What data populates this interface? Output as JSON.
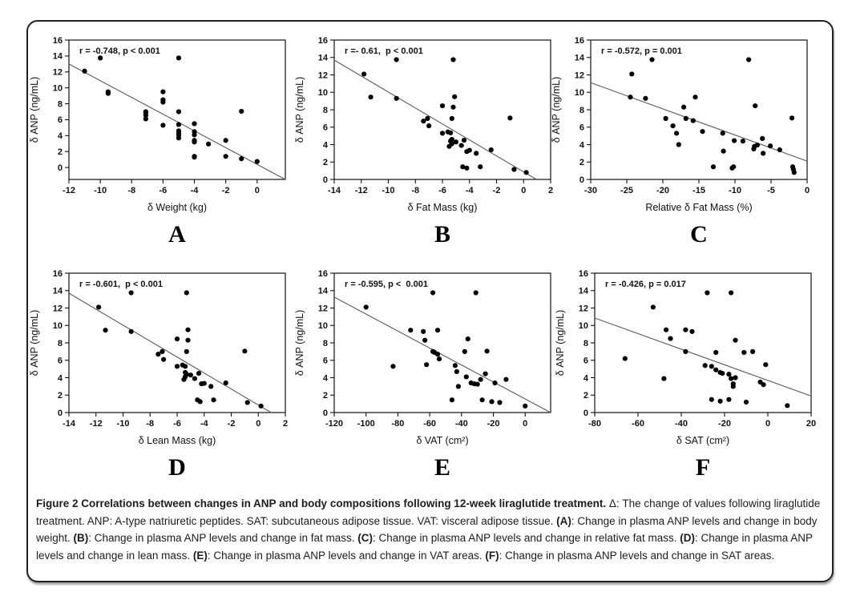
{
  "figure": {
    "caption": [
      {
        "text": "Figure 2 Correlations between changes in ANP and body compositions following 12-week liraglutide treatment.",
        "bold": true
      },
      {
        "text": " Δ: The change of values following liraglutide treatment. ANP: A-type natriuretic peptides. SAT: subcutaneous adipose tissue. VAT: visceral adipose tissue. ",
        "bold": false
      },
      {
        "text": "(A)",
        "bold": true
      },
      {
        "text": ": Change in plasma ANP levels and change in body weight. ",
        "bold": false
      },
      {
        "text": "(B)",
        "bold": true
      },
      {
        "text": ": Change in plasma ANP levels and change in fat mass. ",
        "bold": false
      },
      {
        "text": "(C)",
        "bold": true
      },
      {
        "text": ": Change in plasma ANP levels and change in relative fat mass. ",
        "bold": false
      },
      {
        "text": "(D)",
        "bold": true
      },
      {
        "text": ": Change in plasma ANP levels and change in lean mass. ",
        "bold": false
      },
      {
        "text": "(E)",
        "bold": true
      },
      {
        "text": ": Change in plasma ANP levels and change in VAT areas. ",
        "bold": false
      },
      {
        "text": "(F)",
        "bold": true
      },
      {
        "text": ": Change in plasma ANP levels and change in SAT areas.",
        "bold": false
      }
    ]
  },
  "chart_data": [
    {
      "id": "A",
      "type": "scatter",
      "annotation": "r = -0.748, p < 0.001",
      "xlabel": "δ Weight (kg)",
      "ylabel": "δ ANP (ng/mL)",
      "xlim": [
        -12,
        1.8
      ],
      "ylim": [
        -1.5,
        16
      ],
      "xticks": [
        -12,
        -10,
        -8,
        -6,
        -4,
        -2,
        0
      ],
      "yticks": [
        0,
        2,
        4,
        6,
        8,
        10,
        12,
        14,
        16
      ],
      "regression_line": [
        [
          -12,
          13.0
        ],
        [
          1.8,
          -1.5
        ]
      ],
      "points": [
        [
          -11,
          12.1
        ],
        [
          -10,
          13.75
        ],
        [
          -9.5,
          9.5
        ],
        [
          -9.5,
          9.3
        ],
        [
          -7.1,
          7.0
        ],
        [
          -7.1,
          6.85
        ],
        [
          -7.1,
          6.55
        ],
        [
          -7.1,
          6.1
        ],
        [
          -6,
          9.5
        ],
        [
          -6,
          8.5
        ],
        [
          -6,
          8.2
        ],
        [
          -6,
          5.3
        ],
        [
          -5,
          13.75
        ],
        [
          -5,
          7.0
        ],
        [
          -5,
          5.4
        ],
        [
          -5,
          4.6
        ],
        [
          -5,
          4.3
        ],
        [
          -5,
          4.1
        ],
        [
          -5,
          3.7
        ],
        [
          -4,
          5.5
        ],
        [
          -4,
          4.5
        ],
        [
          -4,
          4.1
        ],
        [
          -4,
          3.4
        ],
        [
          -4,
          3.2
        ],
        [
          -4,
          1.4
        ],
        [
          -4,
          1.3
        ],
        [
          -3.1,
          2.95
        ],
        [
          -2,
          3.4
        ],
        [
          -2,
          1.4
        ],
        [
          -1,
          7.05
        ],
        [
          -1,
          1.1
        ],
        [
          0,
          0.75
        ]
      ]
    },
    {
      "id": "B",
      "type": "scatter",
      "annotation": "r =- 0.61,  p < 0.001",
      "xlabel": "δ Fat Mass (kg)",
      "ylabel": "δ ANP (ng/mL)",
      "xlim": [
        -14,
        2
      ],
      "ylim": [
        0,
        16
      ],
      "xticks": [
        -14,
        -12,
        -10,
        -8,
        -6,
        -4,
        -2,
        0,
        2
      ],
      "yticks": [
        0,
        2,
        4,
        6,
        8,
        10,
        12,
        14,
        16
      ],
      "regression_line": [
        [
          -14,
          13.7
        ],
        [
          0.95,
          0
        ]
      ],
      "points": [
        [
          -11.8,
          12.1
        ],
        [
          -11.3,
          9.45
        ],
        [
          -9.4,
          13.75
        ],
        [
          -9.4,
          9.3
        ],
        [
          -7.4,
          6.7
        ],
        [
          -7.1,
          7.0
        ],
        [
          -7.0,
          6.15
        ],
        [
          -6.0,
          8.45
        ],
        [
          -6.0,
          5.3
        ],
        [
          -5.6,
          5.45
        ],
        [
          -5.4,
          5.35
        ],
        [
          -5.2,
          13.75
        ],
        [
          -5.1,
          9.5
        ],
        [
          -5.2,
          8.3
        ],
        [
          -5.3,
          7.0
        ],
        [
          -5.3,
          4.6
        ],
        [
          -5.4,
          4.4
        ],
        [
          -5.3,
          4.1
        ],
        [
          -5.5,
          3.8
        ],
        [
          -5.0,
          4.3
        ],
        [
          -4.6,
          3.9
        ],
        [
          -4.4,
          4.5
        ],
        [
          -4.5,
          1.45
        ],
        [
          -4.2,
          1.3
        ],
        [
          -4.2,
          3.2
        ],
        [
          -4.0,
          3.35
        ],
        [
          -3.5,
          3.0
        ],
        [
          -3.2,
          1.45
        ],
        [
          -2.4,
          3.4
        ],
        [
          -1.0,
          7.05
        ],
        [
          -0.7,
          1.15
        ],
        [
          0.2,
          0.8
        ]
      ]
    },
    {
      "id": "C",
      "type": "scatter",
      "annotation": "r = -0.572, p = 0.001",
      "xlabel": "Relative δ Fat Mass (%)",
      "ylabel": "δ ANP (ng/mL)",
      "xlim": [
        -30,
        0
      ],
      "ylim": [
        0,
        16
      ],
      "xticks": [
        -30,
        -25,
        -20,
        -15,
        -10,
        -5,
        0
      ],
      "yticks": [
        0,
        2,
        4,
        6,
        8,
        10,
        12,
        14,
        16
      ],
      "regression_line": [
        [
          -30,
          11.1
        ],
        [
          0,
          2.1
        ]
      ],
      "points": [
        [
          -24.5,
          9.45
        ],
        [
          -24.3,
          12.1
        ],
        [
          -22.4,
          9.3
        ],
        [
          -21.5,
          13.75
        ],
        [
          -19.6,
          7.0
        ],
        [
          -18.6,
          6.15
        ],
        [
          -18.1,
          5.3
        ],
        [
          -17.8,
          4.0
        ],
        [
          -17.1,
          8.3
        ],
        [
          -16.8,
          7.0
        ],
        [
          -15.8,
          6.75
        ],
        [
          -15.5,
          9.45
        ],
        [
          -14.5,
          5.5
        ],
        [
          -13.0,
          1.45
        ],
        [
          -11.7,
          5.3
        ],
        [
          -11.6,
          3.25
        ],
        [
          -10.4,
          1.3
        ],
        [
          -10.2,
          1.45
        ],
        [
          -10.1,
          4.45
        ],
        [
          -8.9,
          4.4
        ],
        [
          -8.1,
          13.75
        ],
        [
          -7.4,
          3.5
        ],
        [
          -7.3,
          3.8
        ],
        [
          -7.2,
          8.45
        ],
        [
          -6.9,
          3.95
        ],
        [
          -6.2,
          4.7
        ],
        [
          -6.1,
          3.0
        ],
        [
          -5.1,
          3.85
        ],
        [
          -3.8,
          3.4
        ],
        [
          -2.1,
          7.05
        ],
        [
          -2.0,
          1.45
        ],
        [
          -1.9,
          1.15
        ],
        [
          -1.8,
          0.8
        ]
      ]
    },
    {
      "id": "D",
      "type": "scatter",
      "annotation": "r = -0.601,  p < 0.001",
      "xlabel": "δ Lean Mass (kg)",
      "ylabel": "δ ANP (ng/mL)",
      "xlim": [
        -14,
        2
      ],
      "ylim": [
        0,
        16
      ],
      "xticks": [
        -14,
        -12,
        -10,
        -8,
        -6,
        -4,
        -2,
        0,
        2
      ],
      "yticks": [
        0,
        2,
        4,
        6,
        8,
        10,
        12,
        14,
        16
      ],
      "regression_line": [
        [
          -14,
          13.7
        ],
        [
          0.95,
          0
        ]
      ],
      "points": [
        [
          -11.8,
          12.1
        ],
        [
          -11.3,
          9.45
        ],
        [
          -9.4,
          13.75
        ],
        [
          -9.4,
          9.3
        ],
        [
          -7.4,
          6.7
        ],
        [
          -7.1,
          7.0
        ],
        [
          -7.0,
          6.1
        ],
        [
          -6.0,
          8.45
        ],
        [
          -6.0,
          5.3
        ],
        [
          -5.6,
          5.45
        ],
        [
          -5.3,
          13.75
        ],
        [
          -5.2,
          9.5
        ],
        [
          -5.2,
          8.3
        ],
        [
          -5.3,
          7.0
        ],
        [
          -5.4,
          5.3
        ],
        [
          -5.4,
          4.6
        ],
        [
          -5.3,
          4.4
        ],
        [
          -5.4,
          4.1
        ],
        [
          -5.5,
          3.8
        ],
        [
          -5.0,
          4.3
        ],
        [
          -4.7,
          3.9
        ],
        [
          -4.4,
          4.5
        ],
        [
          -4.5,
          1.45
        ],
        [
          -4.3,
          1.25
        ],
        [
          -4.2,
          3.3
        ],
        [
          -4.0,
          3.35
        ],
        [
          -3.5,
          3.0
        ],
        [
          -3.3,
          1.45
        ],
        [
          -2.4,
          3.4
        ],
        [
          -1.0,
          7.05
        ],
        [
          -0.8,
          1.15
        ],
        [
          0.2,
          0.75
        ]
      ]
    },
    {
      "id": "E",
      "type": "scatter",
      "annotation": "r = -0.595, p <  0.001",
      "xlabel": "δ VAT (cm²)",
      "ylabel": "δ ANP (ng/mL)",
      "xlim": [
        -120,
        16
      ],
      "ylim": [
        0,
        16
      ],
      "xticks": [
        -120,
        -100,
        -80,
        -60,
        -40,
        -20,
        0
      ],
      "yticks": [
        0,
        2,
        4,
        6,
        8,
        10,
        12,
        14,
        16
      ],
      "regression_line": [
        [
          -120,
          13.25
        ],
        [
          16,
          0
        ]
      ],
      "points": [
        [
          -100,
          12.1
        ],
        [
          -83,
          5.3
        ],
        [
          -72,
          9.45
        ],
        [
          -64,
          9.3
        ],
        [
          -63,
          8.3
        ],
        [
          -62,
          5.5
        ],
        [
          -58,
          13.75
        ],
        [
          -58,
          7.0
        ],
        [
          -57,
          6.9
        ],
        [
          -55,
          9.45
        ],
        [
          -55,
          6.7
        ],
        [
          -54,
          6.15
        ],
        [
          -46,
          1.45
        ],
        [
          -44,
          5.4
        ],
        [
          -43,
          4.7
        ],
        [
          -42,
          3.0
        ],
        [
          -38,
          7.0
        ],
        [
          -37,
          4.1
        ],
        [
          -36,
          8.45
        ],
        [
          -34,
          3.4
        ],
        [
          -32,
          3.3
        ],
        [
          -31,
          13.75
        ],
        [
          -30,
          3.25
        ],
        [
          -28,
          3.8
        ],
        [
          -27,
          1.45
        ],
        [
          -25,
          4.45
        ],
        [
          -24,
          7.05
        ],
        [
          -21,
          1.25
        ],
        [
          -19,
          3.4
        ],
        [
          -16,
          1.15
        ],
        [
          -12,
          3.8
        ],
        [
          0,
          0.75
        ]
      ]
    },
    {
      "id": "F",
      "type": "scatter",
      "annotation": "r = -0.426, p = 0.017",
      "xlabel": "δ SAT (cm²)",
      "ylabel": "δ ANP (ng/mL)",
      "xlim": [
        -80,
        20
      ],
      "ylim": [
        0,
        16
      ],
      "xticks": [
        -80,
        -60,
        -40,
        -20,
        0,
        20
      ],
      "yticks": [
        0,
        2,
        4,
        6,
        8,
        10,
        12,
        14,
        16
      ],
      "regression_line": [
        [
          -80,
          10.85
        ],
        [
          20,
          1.9
        ]
      ],
      "points": [
        [
          -66,
          6.2
        ],
        [
          -53,
          12.1
        ],
        [
          -48,
          3.9
        ],
        [
          -47,
          9.5
        ],
        [
          -45,
          8.5
        ],
        [
          -38,
          9.5
        ],
        [
          -38,
          7.0
        ],
        [
          -35,
          9.3
        ],
        [
          -29,
          5.4
        ],
        [
          -28,
          13.75
        ],
        [
          -26,
          5.3
        ],
        [
          -26,
          1.5
        ],
        [
          -24,
          4.9
        ],
        [
          -24,
          6.9
        ],
        [
          -22,
          4.6
        ],
        [
          -22,
          1.3
        ],
        [
          -21,
          4.5
        ],
        [
          -18,
          4.4
        ],
        [
          -18,
          1.5
        ],
        [
          -17,
          13.75
        ],
        [
          -17,
          3.9
        ],
        [
          -16,
          3.3
        ],
        [
          -16,
          3.0
        ],
        [
          -15,
          8.3
        ],
        [
          -15,
          4.0
        ],
        [
          -11,
          6.9
        ],
        [
          -10,
          1.2
        ],
        [
          -7,
          7.0
        ],
        [
          -3.5,
          3.5
        ],
        [
          -2,
          3.2
        ],
        [
          -1,
          5.5
        ],
        [
          9,
          0.8
        ]
      ]
    }
  ]
}
